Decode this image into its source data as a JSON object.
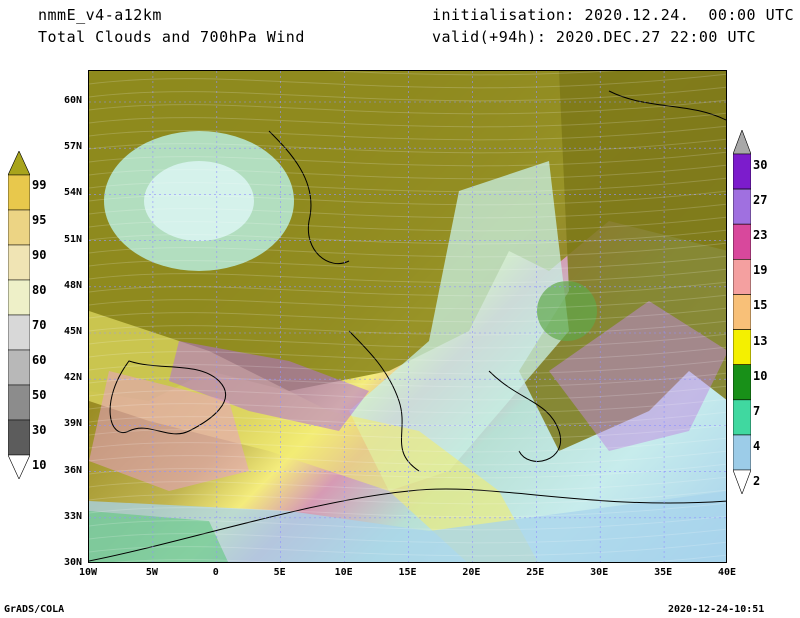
{
  "header": {
    "model": "nmmE_v4-a12km",
    "field": "Total Clouds and 700hPa Wind",
    "init": "initialisation: 2020.12.24.  00:00 UTC",
    "valid": "valid(+94h): 2020.DEC.27 22:00 UTC"
  },
  "footer": {
    "credit": "GrADS/COLA",
    "timestamp": "2020-12-24-10:51"
  },
  "map": {
    "lat_labels": [
      "60N",
      "57N",
      "54N",
      "51N",
      "48N",
      "45N",
      "42N",
      "39N",
      "36N",
      "33N",
      "30N"
    ],
    "lon_labels": [
      "10W",
      "5W",
      "0",
      "5E",
      "10E",
      "15E",
      "20E",
      "25E",
      "30E",
      "35E",
      "40E"
    ]
  },
  "cloud_scale": {
    "labels": [
      "99",
      "95",
      "90",
      "80",
      "70",
      "60",
      "50",
      "30",
      "10"
    ],
    "colors": [
      "#a8a41c",
      "#e8c84c",
      "#ecd484",
      "#f0e4b4",
      "#eef0c8",
      "#d8d8d8",
      "#b8b8b8",
      "#8c8c8c",
      "#5c5c5c"
    ]
  },
  "wind_scale": {
    "labels": [
      "30",
      "27",
      "23",
      "19",
      "15",
      "13",
      "10",
      "7",
      "4",
      "2"
    ],
    "colors": [
      "#7c1ccc",
      "#a070e0",
      "#d8489c",
      "#f4a0a0",
      "#f8c078",
      "#f4f000",
      "#189018",
      "#40d8a0",
      "#9ccce8",
      "#cceeee"
    ]
  }
}
